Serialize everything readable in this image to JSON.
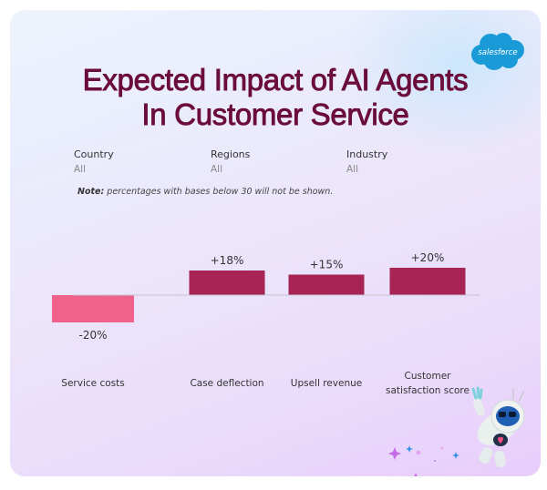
{
  "brand": {
    "logo_text": "salesforce",
    "logo_color": "#1798c1"
  },
  "header": {
    "title_line1": "Expected Impact of AI Agents",
    "title_line2": "In Customer Service"
  },
  "filters": [
    {
      "label": "Country",
      "value": "All"
    },
    {
      "label": "Regions",
      "value": "All"
    },
    {
      "label": "Industry",
      "value": "All"
    }
  ],
  "note": {
    "prefix": "Note:",
    "text": " percentages with bases below 30 will not be shown."
  },
  "colors": {
    "positive": "#a82454",
    "negative": "#f0628a",
    "title": "#6b0d3a",
    "axis": "#c9c2cf"
  },
  "chart_data": {
    "type": "bar",
    "title": "Expected Impact of AI Agents In Customer Service",
    "xlabel": "",
    "ylabel": "",
    "categories": [
      [
        "Service costs"
      ],
      [
        "Case deflection"
      ],
      [
        "Upsell revenue"
      ],
      [
        "Customer",
        "satisfaction score"
      ]
    ],
    "category_names": [
      "Service costs",
      "Case deflection",
      "Upsell revenue",
      "Customer satisfaction score"
    ],
    "values": [
      -20,
      18,
      15,
      20
    ],
    "value_labels": [
      "-20%",
      "+18%",
      "+15%",
      "+20%"
    ],
    "unit": "%",
    "ylim": [
      -20,
      20
    ],
    "grid": false,
    "legend": "none"
  }
}
